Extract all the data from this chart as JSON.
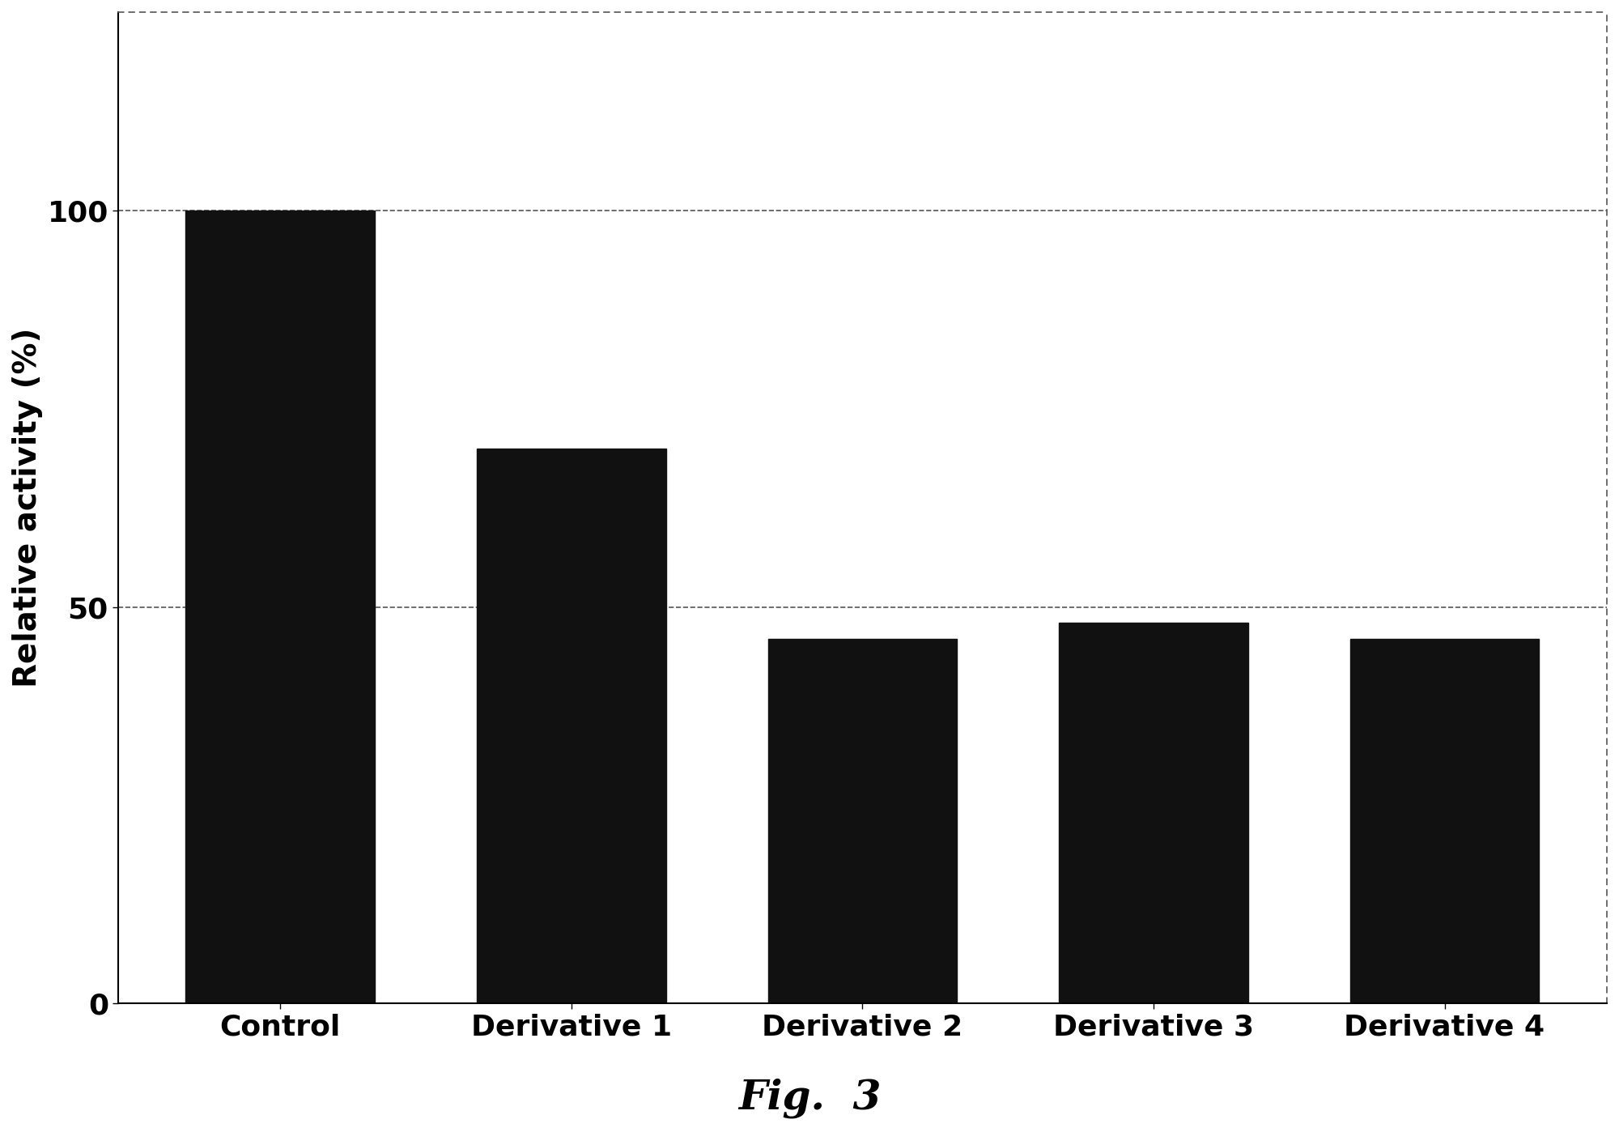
{
  "categories": [
    "Control",
    "Derivative 1",
    "Derivative 2",
    "Derivative 3",
    "Derivative 4"
  ],
  "values": [
    100,
    70,
    46,
    48,
    46
  ],
  "bar_color": "#111111",
  "ylabel": "Relative activity (%)",
  "ylim": [
    0,
    125
  ],
  "yticks": [
    0,
    50,
    100
  ],
  "grid_color": "#555555",
  "background_color": "#ffffff",
  "figure_color": "#ffffff",
  "caption": "Fig.  3",
  "caption_fontsize": 36,
  "ylabel_fontsize": 28,
  "tick_fontsize": 26,
  "xtick_fontsize": 26,
  "bar_width": 0.65
}
